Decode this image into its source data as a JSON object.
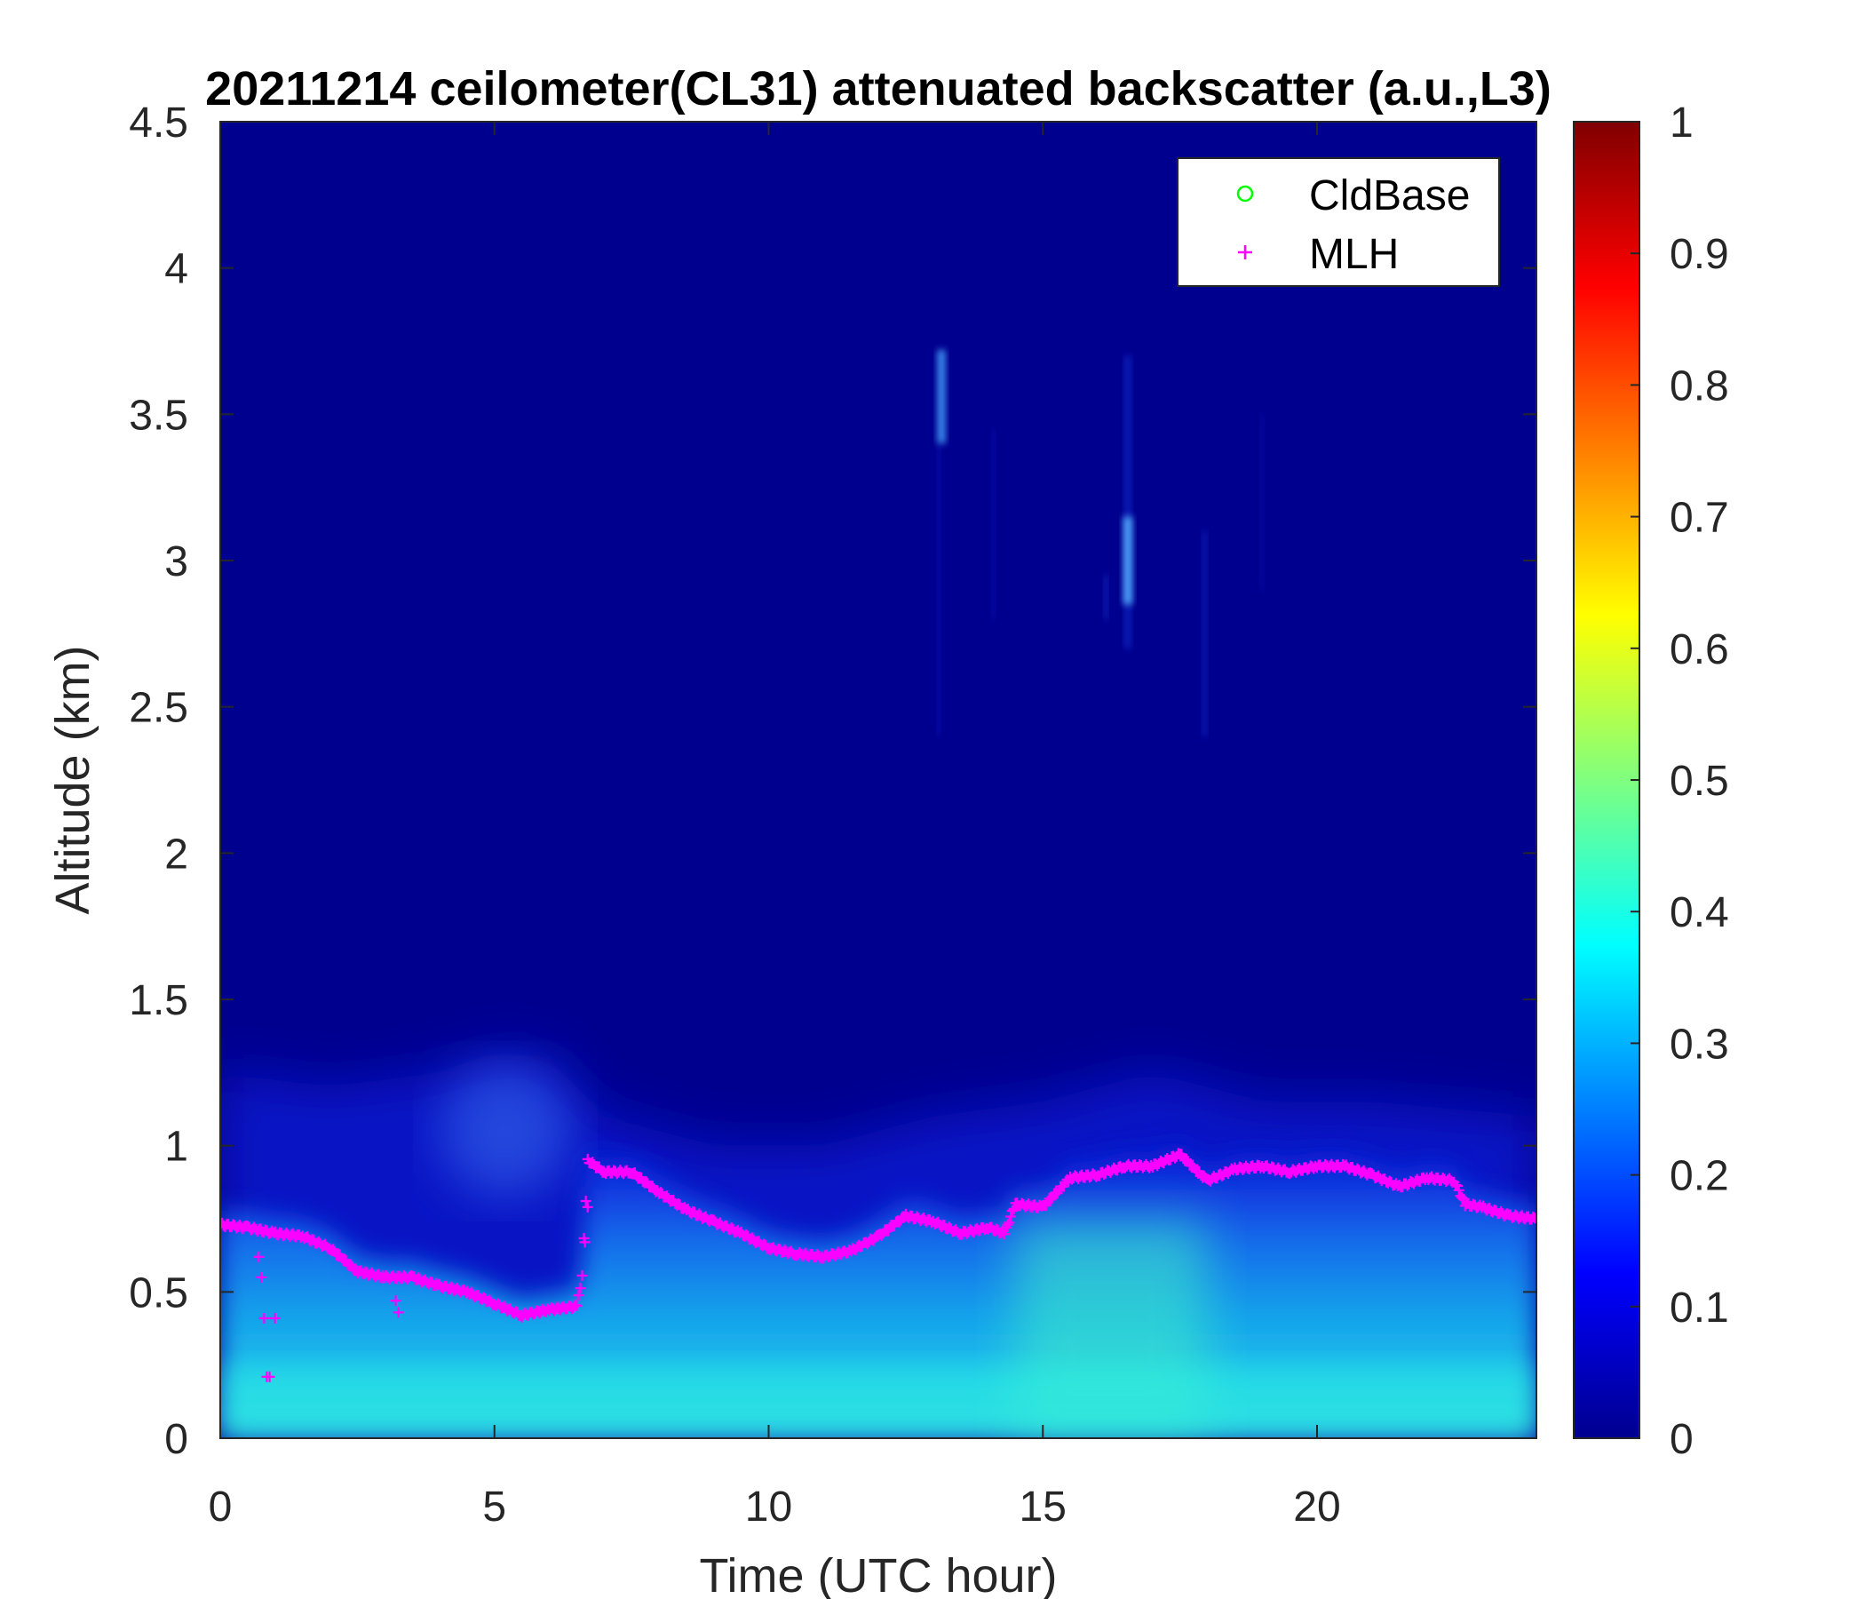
{
  "colors": {
    "mlh": "#ff00ff",
    "cldbase": "#00ff00",
    "background_field": "#00008f"
  },
  "chart_data": {
    "type": "heatmap",
    "title": "20211214 ceilometer(CL31) attenuated backscatter (a.u.,L3)",
    "xlabel": "Time (UTC hour)",
    "ylabel": "Altitude (km)",
    "xlim": [
      0,
      24
    ],
    "ylim": [
      0,
      4.5
    ],
    "xticks": [
      0,
      5,
      10,
      15,
      20
    ],
    "xtick_labels": [
      "0",
      "5",
      "10",
      "15",
      "20"
    ],
    "yticks": [
      0,
      0.5,
      1,
      1.5,
      2,
      2.5,
      3,
      3.5,
      4,
      4.5
    ],
    "ytick_labels": [
      "0",
      "0.5",
      "1",
      "1.5",
      "2",
      "2.5",
      "3",
      "3.5",
      "4",
      "4.5"
    ],
    "colorbar": {
      "colormap": "jet",
      "clim": [
        0,
        1
      ],
      "ticks": [
        0,
        0.1,
        0.2,
        0.3,
        0.4,
        0.5,
        0.6,
        0.7,
        0.8,
        0.9,
        1
      ],
      "tick_labels": [
        "0",
        "0.1",
        "0.2",
        "0.3",
        "0.4",
        "0.5",
        "0.6",
        "0.7",
        "0.8",
        "0.9",
        "1"
      ]
    },
    "legend": {
      "placement": "top-right",
      "entries": [
        {
          "label": "CldBase",
          "marker": "circle",
          "color": "#00ff00"
        },
        {
          "label": "MLH",
          "marker": "plus",
          "color": "#ff00ff"
        }
      ]
    },
    "field_description": {
      "near_surface_value_range": [
        0.3,
        0.45
      ],
      "boundary_layer_top_km_range": [
        1.0,
        1.3
      ],
      "free_troposphere_value": 0.0
    },
    "series": [
      {
        "name": "MLH",
        "marker": "plus",
        "x": [
          0,
          0.5,
          1.0,
          1.5,
          2.0,
          2.5,
          3.0,
          3.5,
          4.0,
          4.5,
          5.0,
          5.5,
          6.0,
          6.5,
          6.6,
          6.7,
          7.0,
          7.5,
          8.0,
          8.5,
          9.0,
          9.5,
          10.0,
          10.5,
          11.0,
          11.5,
          12.0,
          12.5,
          13.0,
          13.5,
          14.0,
          14.3,
          14.5,
          15.0,
          15.5,
          16.0,
          16.5,
          17.0,
          17.5,
          18.0,
          18.5,
          19.0,
          19.5,
          20.0,
          20.5,
          21.0,
          21.5,
          22.0,
          22.5,
          22.7,
          23.0,
          23.5,
          24.0
        ],
        "y": [
          0.73,
          0.72,
          0.7,
          0.69,
          0.65,
          0.57,
          0.55,
          0.55,
          0.52,
          0.5,
          0.46,
          0.42,
          0.44,
          0.45,
          0.55,
          0.95,
          0.91,
          0.91,
          0.84,
          0.78,
          0.74,
          0.7,
          0.65,
          0.63,
          0.62,
          0.64,
          0.69,
          0.76,
          0.74,
          0.7,
          0.72,
          0.7,
          0.8,
          0.79,
          0.89,
          0.9,
          0.93,
          0.93,
          0.97,
          0.88,
          0.92,
          0.93,
          0.91,
          0.93,
          0.93,
          0.9,
          0.86,
          0.89,
          0.88,
          0.8,
          0.79,
          0.76,
          0.75
        ]
      },
      {
        "name": "MLH_outliers",
        "marker": "plus",
        "x": [
          0.7,
          0.75,
          0.8,
          0.85,
          0.9,
          1.0,
          3.2,
          3.25,
          6.65,
          6.7
        ],
        "y": [
          0.62,
          0.55,
          0.41,
          0.21,
          0.21,
          0.41,
          0.47,
          0.43,
          0.67,
          0.79
        ]
      }
    ]
  }
}
